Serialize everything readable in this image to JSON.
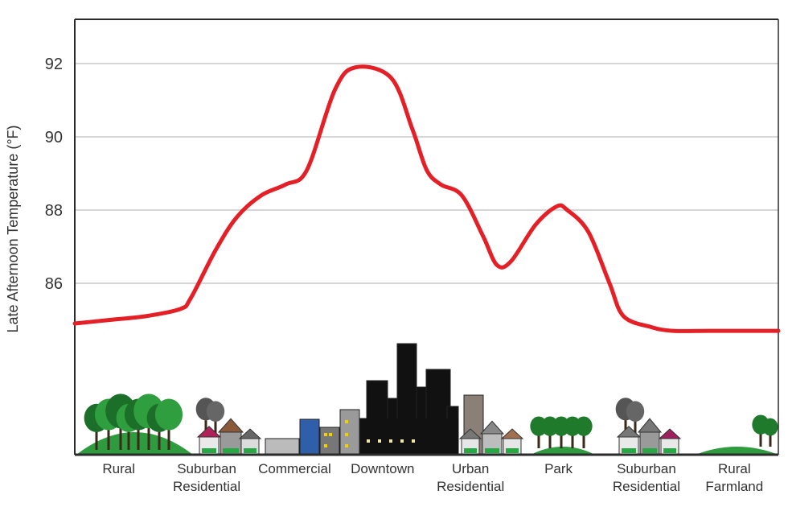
{
  "chart_data": {
    "type": "line",
    "title": "",
    "xlabel": "",
    "ylabel": "Late Afternoon Temperature (°F)",
    "yticks": [
      86,
      88,
      90,
      92
    ],
    "ylim": [
      82,
      93.5
    ],
    "grid": true,
    "legend": "none",
    "x": [
      0,
      0.05,
      0.1,
      0.15,
      0.165,
      0.2,
      0.23,
      0.265,
      0.3,
      0.33,
      0.37,
      0.4,
      0.45,
      0.48,
      0.5,
      0.52,
      0.55,
      0.58,
      0.6,
      0.62,
      0.655,
      0.685,
      0.7,
      0.73,
      0.76,
      0.78,
      0.82,
      0.85,
      0.9,
      0.95,
      1.0
    ],
    "series": [
      {
        "name": "",
        "values": [
          84.9,
          85.0,
          85.1,
          85.3,
          85.6,
          86.9,
          87.8,
          88.4,
          88.7,
          89.1,
          91.3,
          91.9,
          91.6,
          90.2,
          89.1,
          88.7,
          88.4,
          87.3,
          86.5,
          86.6,
          87.6,
          88.1,
          88.0,
          87.4,
          86.0,
          85.1,
          84.8,
          84.7,
          84.7,
          84.7,
          84.7
        ]
      }
    ],
    "categories": [
      {
        "lines": [
          "Rural"
        ]
      },
      {
        "lines": [
          "Suburban",
          "Residential"
        ]
      },
      {
        "lines": [
          "Commercial"
        ]
      },
      {
        "lines": [
          "Downtown"
        ]
      },
      {
        "lines": [
          "Urban",
          "Residential"
        ]
      },
      {
        "lines": [
          "Park"
        ]
      },
      {
        "lines": [
          "Suburban",
          "Residential"
        ]
      },
      {
        "lines": [
          "Rural",
          "Farmland"
        ]
      }
    ],
    "colors": {
      "line": "#e41f26",
      "grid": "#c8c8c8",
      "axis": "#2b2b2b",
      "ground": "#2e9b3e",
      "tree": "#1f7a2c",
      "building_dark": "#111111"
    }
  }
}
